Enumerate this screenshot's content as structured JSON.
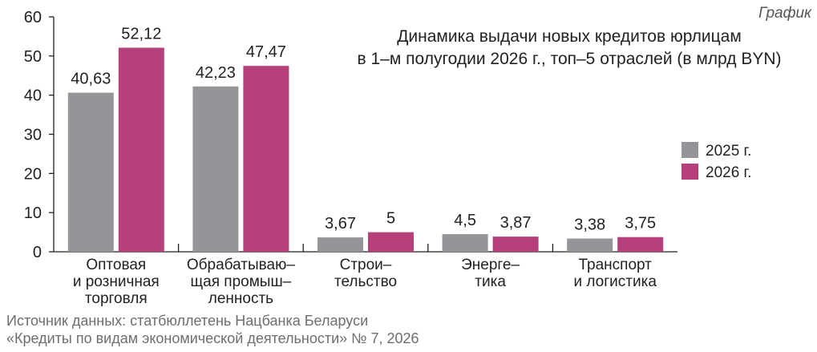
{
  "kicker": "График",
  "title_lines": [
    "Динамика выдачи новых кредитов юрлицам",
    "в 1–м полугодии 2026 г., топ–5 отраслей (в млрд BYN)"
  ],
  "source_lines": [
    "Источник данных: статбюллетень Нацбанка Беларуси",
    "«Кредиты по видам экономической деятельности» № 7, 2026"
  ],
  "colors": {
    "2025": "#939598",
    "2026": "#b5407a"
  },
  "chart_data": {
    "type": "bar",
    "title": "Динамика выдачи новых кредитов юрлицам в 1–м полугодии 2026 г., топ–5 отраслей (в млрд BYN)",
    "categories": [
      [
        "Оптовая",
        "и розничная",
        "торговля"
      ],
      [
        "Обрабатываю–",
        "щая промыш–",
        "ленность"
      ],
      [
        "Строи–",
        "тельство"
      ],
      [
        "Энерге–",
        "тика"
      ],
      [
        "Транспорт",
        "и логистика"
      ]
    ],
    "series": [
      {
        "name": "2025 г.",
        "values": [
          40.63,
          42.23,
          3.67,
          4.5,
          3.38
        ],
        "labels": [
          "40,63",
          "42,23",
          "3,67",
          "4,5",
          "3,38"
        ]
      },
      {
        "name": "2026 г.",
        "values": [
          52.12,
          47.47,
          5,
          3.87,
          3.75
        ],
        "labels": [
          "52,12",
          "47,47",
          "5",
          "3,87",
          "3,75"
        ]
      }
    ],
    "ylim": [
      0,
      60
    ],
    "yticks": [
      0,
      10,
      20,
      30,
      40,
      50,
      60
    ],
    "grid": false,
    "legend": "right"
  }
}
